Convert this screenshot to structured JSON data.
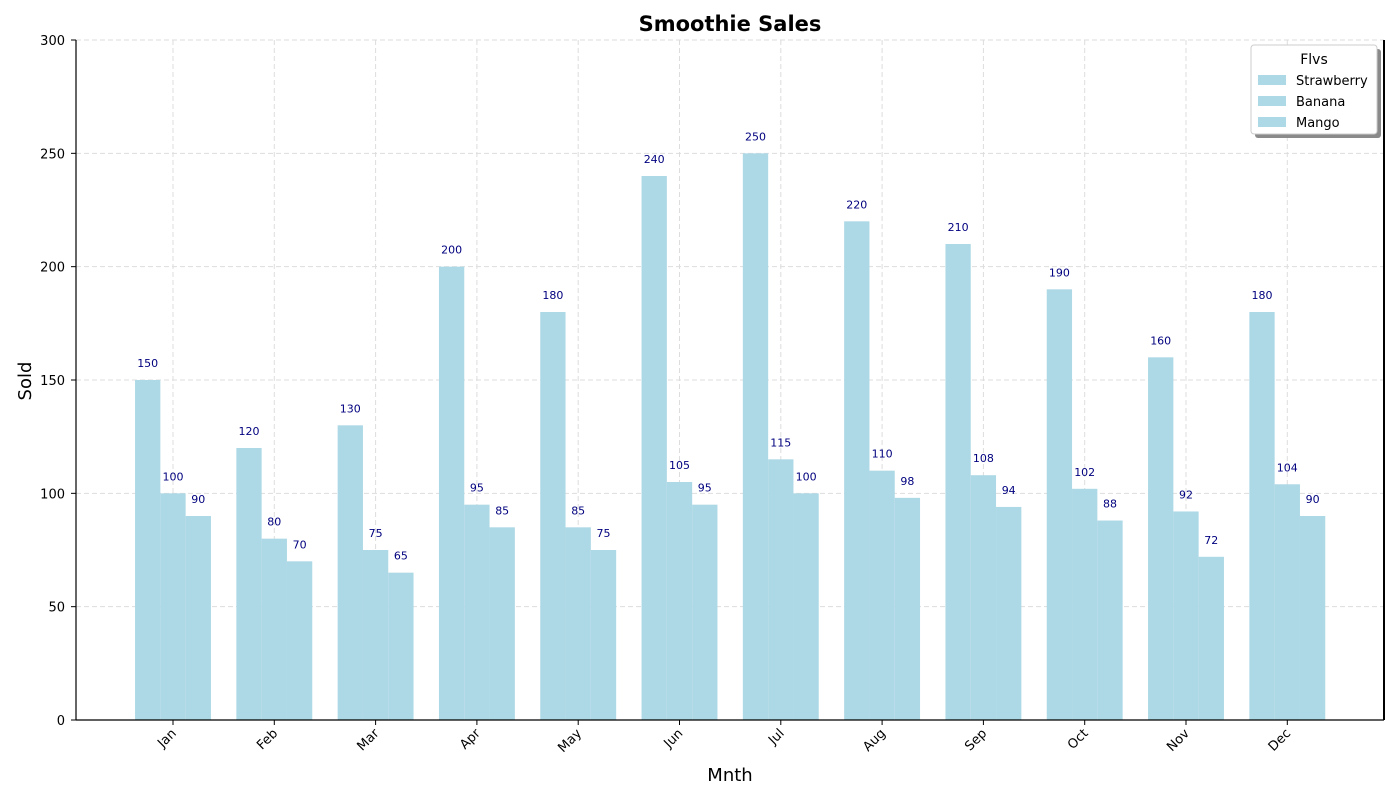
{
  "chart_data": {
    "type": "bar",
    "title": "Smoothie Sales",
    "xlabel": "Mnth",
    "ylabel": "Sold",
    "ylim": [
      0,
      300
    ],
    "yticks": [
      0,
      50,
      100,
      150,
      200,
      250,
      300
    ],
    "categories": [
      "Jan",
      "Feb",
      "Mar",
      "Apr",
      "May",
      "Jun",
      "Jul",
      "Aug",
      "Sep",
      "Oct",
      "Nov",
      "Dec"
    ],
    "series": [
      {
        "name": "Strawberry",
        "values": [
          150,
          120,
          130,
          200,
          180,
          240,
          250,
          220,
          210,
          190,
          160,
          180
        ]
      },
      {
        "name": "Banana",
        "values": [
          100,
          80,
          75,
          95,
          85,
          105,
          115,
          110,
          108,
          102,
          92,
          104
        ]
      },
      {
        "name": "Mango",
        "values": [
          90,
          70,
          65,
          85,
          75,
          95,
          100,
          98,
          94,
          88,
          72,
          90
        ]
      }
    ],
    "legend": {
      "title": "Flvs",
      "position": "top-right"
    },
    "grid": true,
    "bar_color": "#add8e6",
    "label_color": "#00007f",
    "tick_label_rotation_deg": 45
  }
}
